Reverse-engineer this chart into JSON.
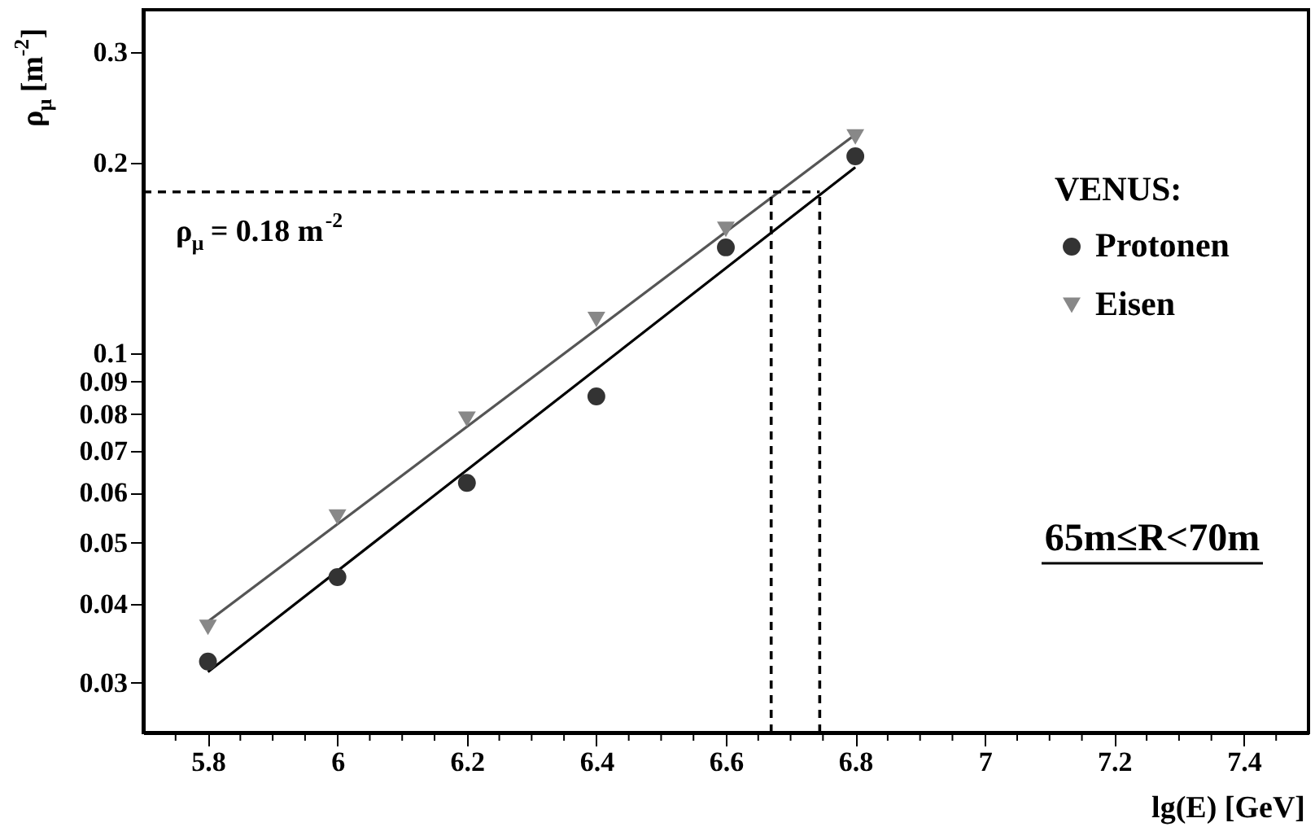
{
  "chart_data": {
    "type": "scatter",
    "xlabel": "lg(E) [GeV]",
    "ylabel": "ρ$_{μ}$ [m$^{-2}$]",
    "legend_title": "VENUS:",
    "series": [
      {
        "name": "Protonen",
        "color": "#333333",
        "marker": "circle",
        "x": [
          5.8,
          6.0,
          6.2,
          6.4,
          6.6,
          6.8
        ],
        "values": [
          0.0324,
          0.0441,
          0.0622,
          0.0853,
          0.147,
          0.205
        ]
      },
      {
        "name": "Eisen",
        "color": "#888888",
        "marker": "triangle",
        "x": [
          5.8,
          6.0,
          6.2,
          6.4,
          6.6,
          6.8
        ],
        "values": [
          0.0367,
          0.0549,
          0.0785,
          0.113,
          0.157,
          0.22
        ]
      },
      {
        "type": "line",
        "color": "#000000",
        "x": [
          5.8,
          6.8
        ],
        "values": [
          0.0312,
          0.197
        ]
      },
      {
        "type": "line",
        "color": "#555555",
        "x": [
          5.8,
          6.8
        ],
        "values": [
          0.0375,
          0.222
        ]
      }
    ],
    "ref_lines": [
      {
        "axis": "y",
        "value": 0.18,
        "label": "ρ$_{μ}$ = 0.18 m$^{-2}$",
        "line_style": "dashed"
      },
      {
        "axis": "x",
        "value": 6.67,
        "line_style": "dashed"
      },
      {
        "axis": "x",
        "value": 6.745,
        "line_style": "dashed"
      }
    ],
    "annotations": [
      "65m≤R<70m"
    ],
    "log": "y",
    "legend": "right",
    "grid": false,
    "xlim": [
      5.7,
      7.5
    ],
    "ylim": [
      0.025,
      0.35
    ],
    "xticks": [
      {
        "value": 5.75,
        "label": null
      },
      5.8,
      {
        "value": 5.85,
        "label": null
      },
      {
        "value": 5.9,
        "label": null
      },
      {
        "value": 5.95,
        "label": null
      },
      6,
      {
        "value": 6.05,
        "label": null
      },
      {
        "value": 6.1,
        "label": null
      },
      {
        "value": 6.15,
        "label": null
      },
      6.2,
      {
        "value": 6.25,
        "label": null
      },
      {
        "value": 6.3,
        "label": null
      },
      {
        "value": 6.35,
        "label": null
      },
      6.4,
      {
        "value": 6.45,
        "label": null
      },
      {
        "value": 6.5,
        "label": null
      },
      {
        "value": 6.55,
        "label": null
      },
      6.6,
      {
        "value": 6.65,
        "label": null
      },
      {
        "value": 6.7,
        "label": null
      },
      {
        "value": 6.75,
        "label": null
      },
      6.8,
      {
        "value": 6.85,
        "label": null
      },
      {
        "value": 6.9,
        "label": null
      },
      {
        "value": 6.95,
        "label": null
      },
      7,
      {
        "value": 7.05,
        "label": null
      },
      {
        "value": 7.1,
        "label": null
      },
      {
        "value": 7.15,
        "label": null
      },
      7.2,
      {
        "value": 7.25,
        "label": null
      },
      {
        "value": 7.3,
        "label": null
      },
      {
        "value": 7.35,
        "label": null
      },
      7.4,
      {
        "value": 7.45,
        "label": null
      }
    ],
    "yticks": [
      0.03,
      0.04,
      0.05,
      0.06,
      0.07,
      0.08,
      0.09,
      0.1,
      0.2,
      0.3
    ]
  }
}
